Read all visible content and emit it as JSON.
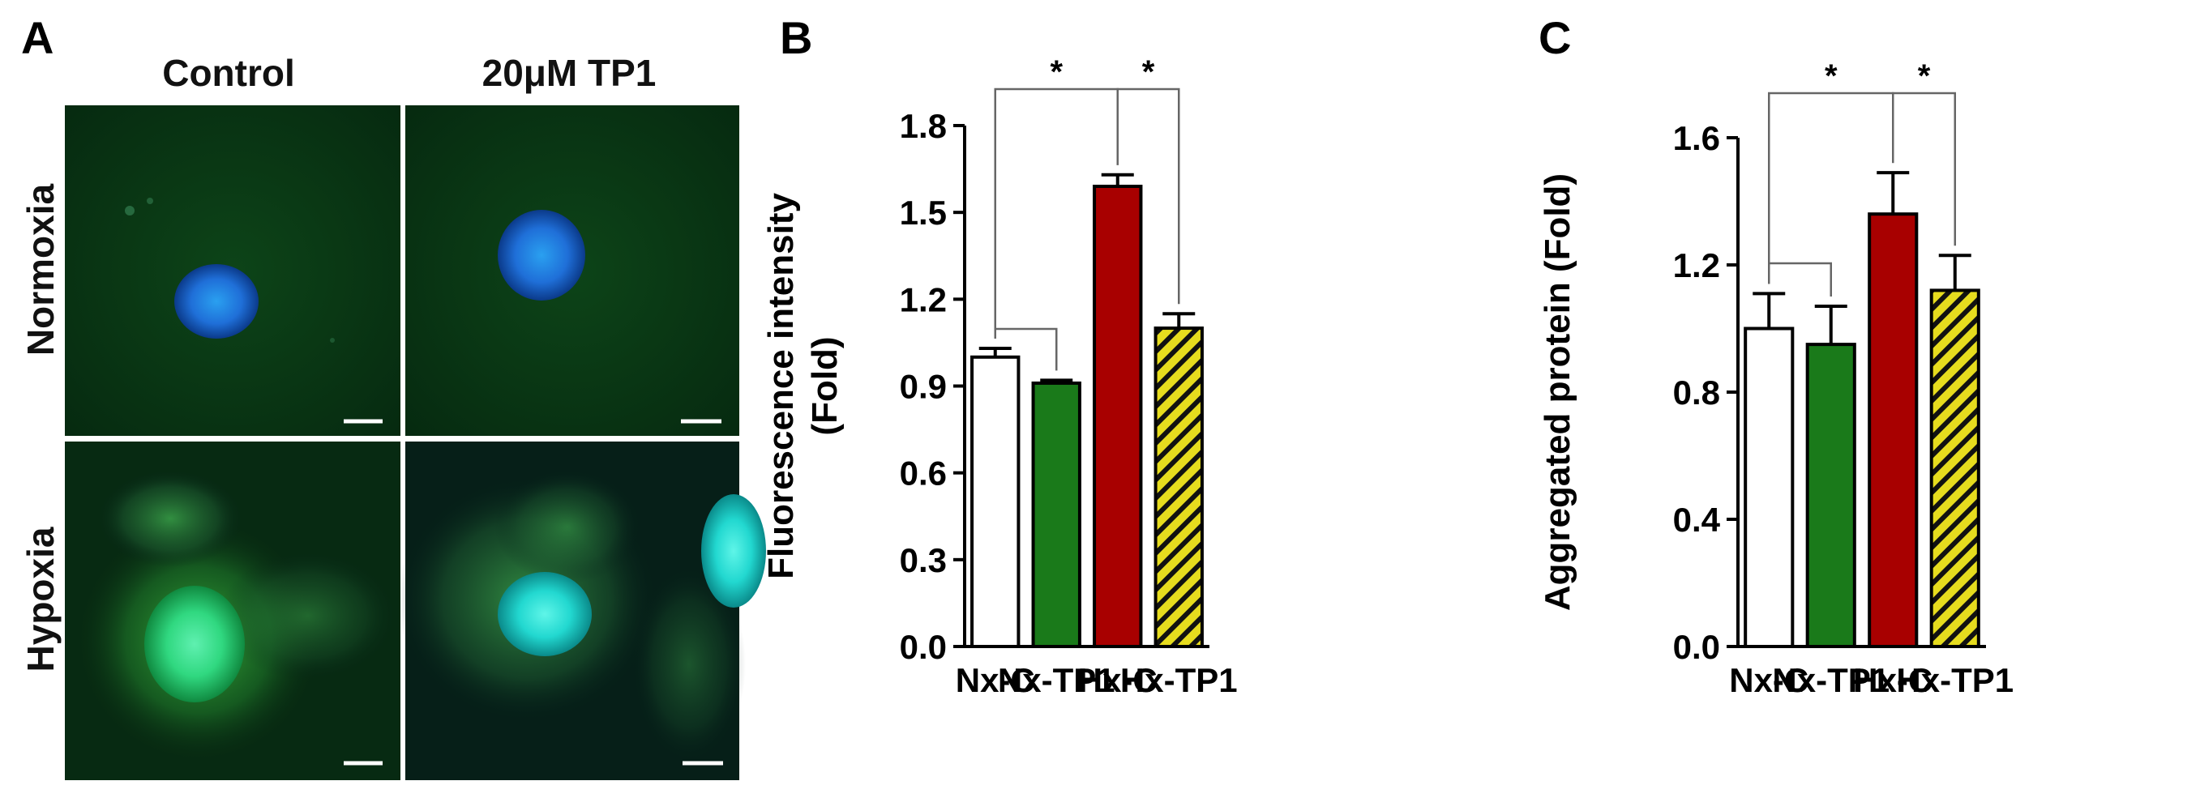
{
  "panel_a": {
    "letter": "A",
    "col_headers": [
      "Control",
      "20μM TP1"
    ],
    "row_headers": [
      "Normoxia",
      "Hypoxia"
    ]
  },
  "chart_data": [
    {
      "panel": "B",
      "type": "bar",
      "categories": [
        "Nx-C",
        "Nx-TP1",
        "Hx-C",
        "Hx-TP1"
      ],
      "values": [
        1.0,
        0.91,
        1.59,
        1.1
      ],
      "errors": [
        0.03,
        0.01,
        0.04,
        0.05
      ],
      "bar_colors": [
        "#ffffff",
        "#1a7a1a",
        "#a80000",
        "#e6dc1e"
      ],
      "hatched": [
        false,
        false,
        false,
        true
      ],
      "ylabel_lines": [
        "Fluorescence intensity",
        "(Fold)"
      ],
      "ylim": [
        0,
        1.8
      ],
      "yticks": [
        "0.0",
        "0.3",
        "0.6",
        "0.9",
        "1.2",
        "1.5",
        "1.8"
      ],
      "brackets": [
        {
          "from": 0,
          "to": 1,
          "label": ""
        },
        {
          "from": 0,
          "to": 2,
          "label": "*"
        },
        {
          "from": 2,
          "to": 3,
          "label": "*"
        }
      ]
    },
    {
      "panel": "C",
      "type": "bar",
      "categories": [
        "Nx-C",
        "Nx-TP1",
        "Hx-C",
        "Hx-TP1"
      ],
      "values": [
        1.0,
        0.95,
        1.36,
        1.12
      ],
      "errors": [
        0.11,
        0.12,
        0.13,
        0.11
      ],
      "bar_colors": [
        "#ffffff",
        "#1a7a1a",
        "#a80000",
        "#e6dc1e"
      ],
      "hatched": [
        false,
        false,
        false,
        true
      ],
      "ylabel_lines": [
        "Aggregated protein (Fold)"
      ],
      "ylim": [
        0,
        1.6
      ],
      "yticks": [
        "0.0",
        "0.4",
        "0.8",
        "1.2",
        "1.6"
      ],
      "brackets": [
        {
          "from": 0,
          "to": 1,
          "label": ""
        },
        {
          "from": 0,
          "to": 2,
          "label": "*"
        },
        {
          "from": 2,
          "to": 3,
          "label": "*"
        }
      ]
    }
  ]
}
